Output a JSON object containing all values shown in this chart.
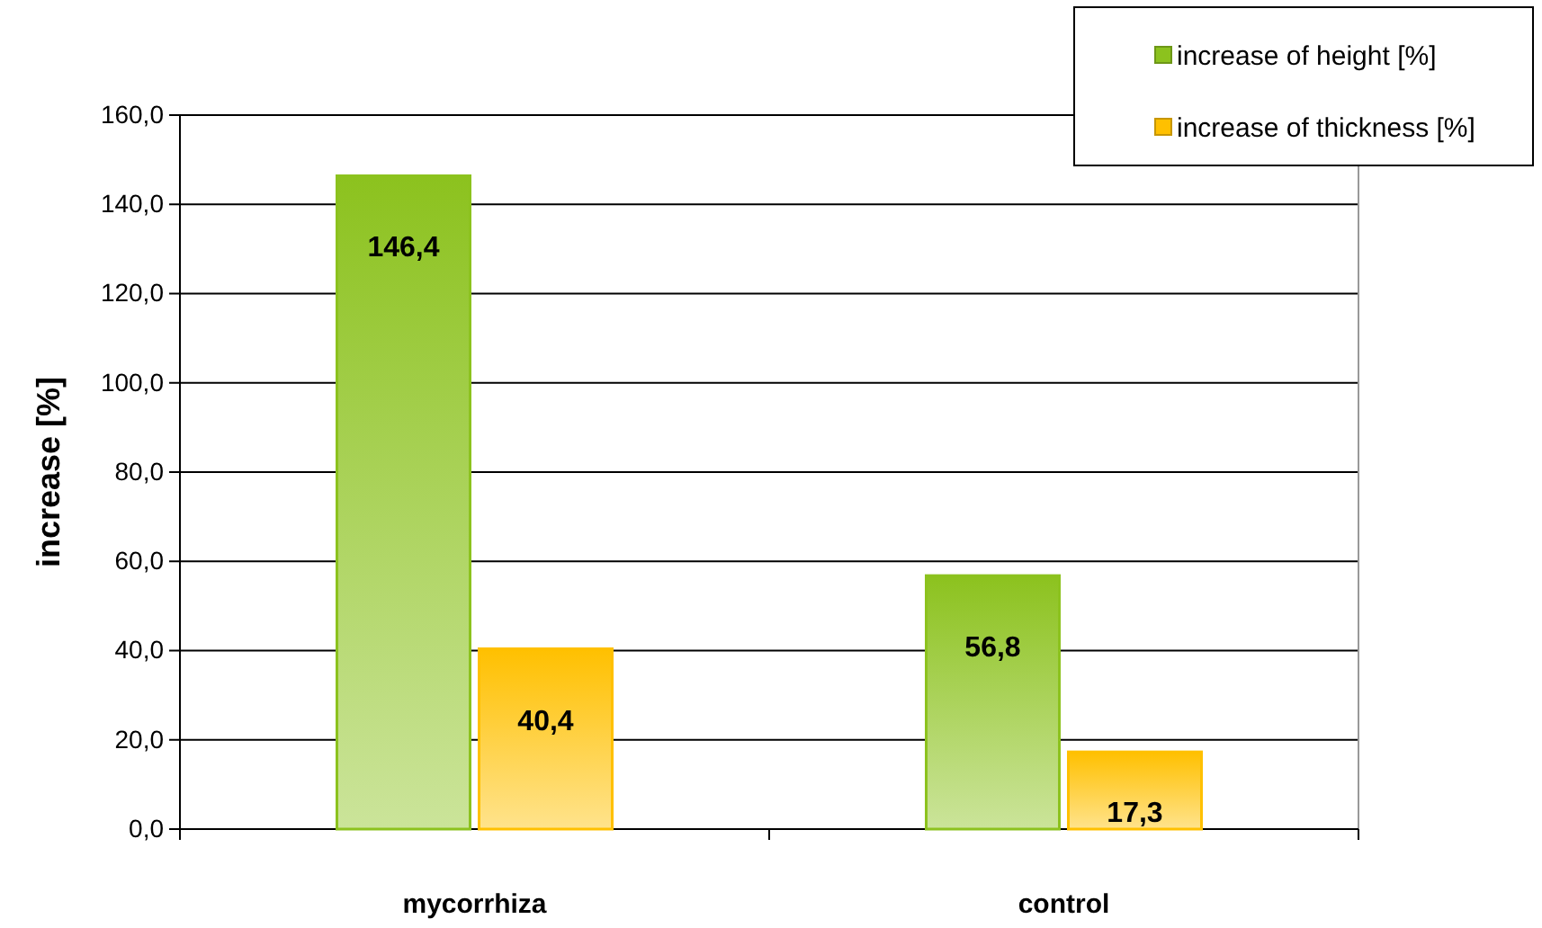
{
  "chart_data": {
    "type": "bar",
    "ylabel": "increase [%]",
    "categories": [
      "mycorrhiza",
      "control"
    ],
    "series": [
      {
        "name": "increase of height [%]",
        "color": "#8cc21e",
        "values": [
          146.4,
          56.8
        ],
        "value_labels": [
          "146,4",
          "56,8"
        ]
      },
      {
        "name": "increase of thickness [%]",
        "color": "#ffc000",
        "values": [
          40.4,
          17.3
        ],
        "value_labels": [
          "40,4",
          "17,3"
        ]
      }
    ],
    "ylim": [
      0,
      160
    ],
    "yticks": [
      {
        "value": 0,
        "label": "0,0"
      },
      {
        "value": 20,
        "label": "20,0"
      },
      {
        "value": 40,
        "label": "40,0"
      },
      {
        "value": 60,
        "label": "60,0"
      },
      {
        "value": 80,
        "label": "80,0"
      },
      {
        "value": 100,
        "label": "100,0"
      },
      {
        "value": 120,
        "label": "120,0"
      },
      {
        "value": 140,
        "label": "140,0"
      },
      {
        "value": 160,
        "label": "160,0"
      }
    ],
    "grid": "y",
    "legend": "top right"
  }
}
